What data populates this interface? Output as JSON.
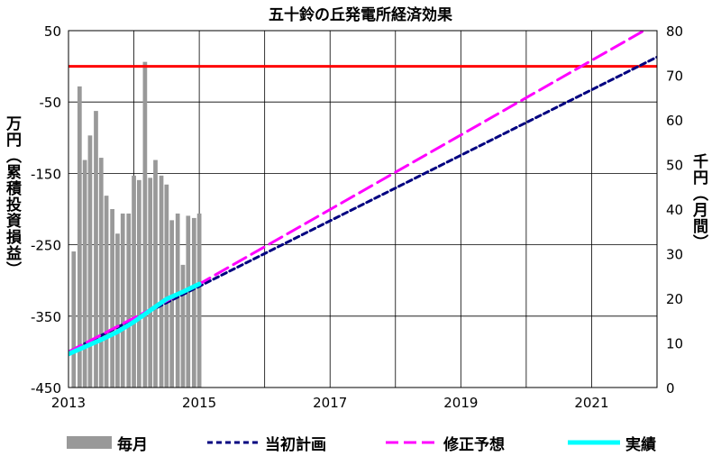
{
  "chart_data": {
    "type": "bar+line",
    "title": "五十鈴の丘発電所経済効果",
    "left_axis": {
      "label": "万円（累積投資損益）",
      "ticks": [
        50,
        -50,
        -150,
        -250,
        -350,
        -450
      ],
      "ylim": [
        -450,
        50
      ]
    },
    "right_axis": {
      "label": "千円（月間）",
      "ticks": [
        80,
        70,
        60,
        50,
        40,
        30,
        20,
        10,
        0
      ],
      "ylim": [
        0,
        80
      ]
    },
    "x_axis": {
      "ticks": [
        "2013",
        "2015",
        "2017",
        "2019",
        "2021"
      ],
      "xlim": [
        2013,
        2022
      ]
    },
    "grid": true,
    "legend_position": "bottom",
    "reference_line": {
      "axis": "left",
      "value": 0,
      "color": "#ff0000"
    },
    "series": [
      {
        "name": "毎月",
        "type": "bar",
        "axis": "right",
        "color": "#999999",
        "x": [
          2013.08,
          2013.17,
          2013.25,
          2013.33,
          2013.42,
          2013.5,
          2013.58,
          2013.67,
          2013.75,
          2013.83,
          2013.92,
          2014.0,
          2014.08,
          2014.17,
          2014.25,
          2014.33,
          2014.42,
          2014.5,
          2014.58,
          2014.67,
          2014.75,
          2014.83,
          2014.92,
          2015.0
        ],
        "values": [
          30.5,
          67.5,
          51,
          56.5,
          62,
          51.5,
          43,
          40,
          34.5,
          39,
          39,
          47.5,
          46.5,
          73,
          47,
          51,
          47.5,
          45.5,
          37.5,
          39,
          27.5,
          38.5,
          38,
          39
        ]
      },
      {
        "name": "当初計画",
        "type": "line",
        "axis": "left",
        "color": "#000080",
        "dash": "short",
        "x": [
          2013.0,
          2022.0
        ],
        "y": [
          -400,
          13
        ]
      },
      {
        "name": "修正予想",
        "type": "line",
        "axis": "left",
        "color": "#ff00ff",
        "dash": "long",
        "x": [
          2013.0,
          2015.0,
          2021.8
        ],
        "y": [
          -400,
          -305,
          50
        ]
      },
      {
        "name": "実績",
        "type": "line",
        "axis": "left",
        "color": "#00ffff",
        "x": [
          2013.0,
          2013.25,
          2013.5,
          2013.75,
          2014.0,
          2014.25,
          2014.5,
          2014.75,
          2015.0
        ],
        "y": [
          -403,
          -393,
          -383,
          -372,
          -358,
          -342,
          -326,
          -316,
          -305
        ]
      }
    ]
  }
}
